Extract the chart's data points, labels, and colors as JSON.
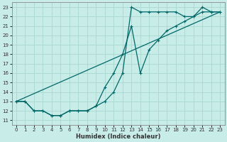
{
  "xlabel": "Humidex (Indice chaleur)",
  "bg_color": "#c8ece8",
  "grid_color": "#a8d8d0",
  "line_color": "#006868",
  "xlim": [
    -0.5,
    23.5
  ],
  "ylim": [
    10.5,
    23.5
  ],
  "xticks": [
    0,
    1,
    2,
    3,
    4,
    5,
    6,
    7,
    8,
    9,
    10,
    11,
    12,
    13,
    14,
    15,
    16,
    17,
    18,
    19,
    20,
    21,
    22,
    23
  ],
  "yticks": [
    11,
    12,
    13,
    14,
    15,
    16,
    17,
    18,
    19,
    20,
    21,
    22,
    23
  ],
  "line1_x": [
    0,
    1,
    2,
    3,
    4,
    5,
    6,
    7,
    8,
    9,
    10,
    11,
    12,
    13,
    14,
    15,
    16,
    17,
    18,
    19,
    20,
    21,
    22,
    23
  ],
  "line1_y": [
    13,
    13,
    12,
    12,
    11.5,
    11.5,
    12,
    12,
    12,
    12.5,
    13,
    14,
    16,
    23,
    22.5,
    22.5,
    22.5,
    22.5,
    22.5,
    22,
    22,
    23,
    22.5,
    22.5
  ],
  "line2_x": [
    0,
    1,
    2,
    3,
    4,
    5,
    6,
    7,
    8,
    9,
    10,
    11,
    12,
    13,
    14,
    15,
    16,
    17,
    18,
    19,
    20,
    21,
    22,
    23
  ],
  "line2_y": [
    13,
    13,
    12,
    12,
    11.5,
    11.5,
    12,
    12,
    12,
    12.5,
    14.5,
    16,
    18,
    21,
    16,
    18.5,
    19.5,
    20.5,
    21,
    21.5,
    22,
    22.5,
    22.5,
    22.5
  ],
  "line3_x": [
    0,
    23
  ],
  "line3_y": [
    13,
    22.5
  ]
}
